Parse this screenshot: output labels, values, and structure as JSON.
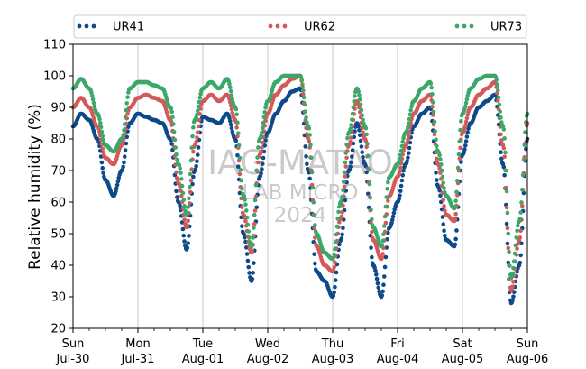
{
  "chart_data": {
    "type": "scatter",
    "title": "",
    "xlabel": "",
    "ylabel": "Relative humidity (%)",
    "ylim": [
      20,
      110
    ],
    "yticks": [
      20,
      30,
      40,
      50,
      60,
      70,
      80,
      90,
      100,
      110
    ],
    "xlim": [
      "2023-07-30T00:00",
      "2023-08-06T00:00"
    ],
    "xtick_labels": [
      {
        "day": "Sun",
        "date": "Jul-30"
      },
      {
        "day": "Mon",
        "date": "Jul-31"
      },
      {
        "day": "Tue",
        "date": "Aug-01"
      },
      {
        "day": "Wed",
        "date": "Aug-02"
      },
      {
        "day": "Thu",
        "date": "Aug-03"
      },
      {
        "day": "Fri",
        "date": "Aug-04"
      },
      {
        "day": "Sat",
        "date": "Aug-05"
      },
      {
        "day": "Sun",
        "date": "Aug-06"
      }
    ],
    "grid": "vertical at day ticks",
    "legend_position": "top",
    "watermark": [
      "IAG-MATAO",
      "LAB MICRO",
      "2024"
    ],
    "series": [
      {
        "name": "UR41",
        "color": "#0d4a8a",
        "x": [
          "2023-07-30T00:00",
          "2023-07-30T03:00",
          "2023-07-30T06:00",
          "2023-07-30T09:00",
          "2023-07-30T12:00",
          "2023-07-30T15:00",
          "2023-07-30T18:00",
          "2023-07-30T21:00",
          "2023-07-31T00:00",
          "2023-07-31T03:00",
          "2023-07-31T06:00",
          "2023-07-31T09:00",
          "2023-07-31T12:00",
          "2023-07-31T15:00",
          "2023-07-31T18:00",
          "2023-07-31T21:00",
          "2023-08-01T00:00",
          "2023-08-01T03:00",
          "2023-08-01T06:00",
          "2023-08-01T09:00",
          "2023-08-01T12:00",
          "2023-08-01T15:00",
          "2023-08-01T18:00",
          "2023-08-01T21:00",
          "2023-08-02T00:00",
          "2023-08-02T03:00",
          "2023-08-02T06:00",
          "2023-08-02T09:00",
          "2023-08-02T12:00",
          "2023-08-02T15:00",
          "2023-08-02T18:00",
          "2023-08-02T21:00",
          "2023-08-03T00:00",
          "2023-08-03T03:00",
          "2023-08-03T06:00",
          "2023-08-03T09:00",
          "2023-08-03T12:00",
          "2023-08-03T15:00",
          "2023-08-03T18:00",
          "2023-08-03T21:00",
          "2023-08-04T00:00",
          "2023-08-04T03:00",
          "2023-08-04T06:00",
          "2023-08-04T09:00",
          "2023-08-04T12:00",
          "2023-08-04T15:00",
          "2023-08-04T18:00",
          "2023-08-04T21:00",
          "2023-08-05T00:00",
          "2023-08-05T03:00",
          "2023-08-05T06:00",
          "2023-08-05T09:00",
          "2023-08-05T12:00",
          "2023-08-05T15:00",
          "2023-08-05T18:00",
          "2023-08-05T21:00",
          "2023-08-06T00:00"
        ],
        "y": [
          84,
          88,
          86,
          80,
          67,
          62,
          70,
          85,
          88,
          87,
          86,
          85,
          80,
          60,
          45,
          70,
          87,
          86,
          85,
          88,
          80,
          50,
          35,
          68,
          82,
          88,
          92,
          95,
          96,
          70,
          38,
          35,
          30,
          48,
          70,
          85,
          72,
          40,
          30,
          52,
          60,
          72,
          84,
          88,
          90,
          65,
          48,
          46,
          75,
          85,
          90,
          92,
          94,
          72,
          28,
          40,
          80
        ]
      },
      {
        "name": "UR62",
        "color": "#d45a5a",
        "x": [
          "2023-07-30T00:00",
          "2023-07-30T03:00",
          "2023-07-30T06:00",
          "2023-07-30T09:00",
          "2023-07-30T12:00",
          "2023-07-30T15:00",
          "2023-07-30T18:00",
          "2023-07-30T21:00",
          "2023-07-31T00:00",
          "2023-07-31T03:00",
          "2023-07-31T06:00",
          "2023-07-31T09:00",
          "2023-07-31T12:00",
          "2023-07-31T15:00",
          "2023-07-31T18:00",
          "2023-07-31T21:00",
          "2023-08-01T00:00",
          "2023-08-01T03:00",
          "2023-08-01T06:00",
          "2023-08-01T09:00",
          "2023-08-01T12:00",
          "2023-08-01T15:00",
          "2023-08-01T18:00",
          "2023-08-01T21:00",
          "2023-08-02T00:00",
          "2023-08-02T03:00",
          "2023-08-02T06:00",
          "2023-08-02T09:00",
          "2023-08-02T12:00",
          "2023-08-02T15:00",
          "2023-08-02T18:00",
          "2023-08-02T21:00",
          "2023-08-03T00:00",
          "2023-08-03T03:00",
          "2023-08-03T06:00",
          "2023-08-03T09:00",
          "2023-08-03T12:00",
          "2023-08-03T15:00",
          "2023-08-03T18:00",
          "2023-08-03T21:00",
          "2023-08-04T00:00",
          "2023-08-04T03:00",
          "2023-08-04T06:00",
          "2023-08-04T09:00",
          "2023-08-04T12:00",
          "2023-08-04T15:00",
          "2023-08-04T18:00",
          "2023-08-04T21:00",
          "2023-08-05T00:00",
          "2023-08-05T03:00",
          "2023-08-05T06:00",
          "2023-08-05T09:00",
          "2023-08-05T12:00",
          "2023-08-05T15:00",
          "2023-08-05T18:00",
          "2023-08-05T21:00",
          "2023-08-06T00:00"
        ],
        "y": [
          90,
          93,
          90,
          84,
          74,
          72,
          78,
          90,
          93,
          94,
          93,
          92,
          86,
          66,
          52,
          78,
          92,
          94,
          92,
          94,
          86,
          56,
          44,
          75,
          88,
          94,
          97,
          99,
          100,
          80,
          46,
          40,
          38,
          55,
          78,
          92,
          80,
          48,
          42,
          62,
          68,
          78,
          88,
          92,
          94,
          72,
          56,
          54,
          82,
          90,
          94,
          96,
          98,
          78,
          32,
          48,
          85
        ]
      },
      {
        "name": "UR73",
        "color": "#3aa868",
        "x": [
          "2023-07-30T00:00",
          "2023-07-30T03:00",
          "2023-07-30T06:00",
          "2023-07-30T09:00",
          "2023-07-30T12:00",
          "2023-07-30T15:00",
          "2023-07-30T18:00",
          "2023-07-30T21:00",
          "2023-07-31T00:00",
          "2023-07-31T03:00",
          "2023-07-31T06:00",
          "2023-07-31T09:00",
          "2023-07-31T12:00",
          "2023-07-31T15:00",
          "2023-07-31T18:00",
          "2023-07-31T21:00",
          "2023-08-01T00:00",
          "2023-08-01T03:00",
          "2023-08-01T06:00",
          "2023-08-01T09:00",
          "2023-08-01T12:00",
          "2023-08-01T15:00",
          "2023-08-01T18:00",
          "2023-08-01T21:00",
          "2023-08-02T00:00",
          "2023-08-02T03:00",
          "2023-08-02T06:00",
          "2023-08-02T09:00",
          "2023-08-02T12:00",
          "2023-08-02T15:00",
          "2023-08-02T18:00",
          "2023-08-02T21:00",
          "2023-08-03T00:00",
          "2023-08-03T03:00",
          "2023-08-03T06:00",
          "2023-08-03T09:00",
          "2023-08-03T12:00",
          "2023-08-03T15:00",
          "2023-08-03T18:00",
          "2023-08-03T21:00",
          "2023-08-04T00:00",
          "2023-08-04T03:00",
          "2023-08-04T06:00",
          "2023-08-04T09:00",
          "2023-08-04T12:00",
          "2023-08-04T15:00",
          "2023-08-04T18:00",
          "2023-08-04T21:00",
          "2023-08-05T00:00",
          "2023-08-05T03:00",
          "2023-08-05T06:00",
          "2023-08-05T09:00",
          "2023-08-05T12:00",
          "2023-08-05T15:00",
          "2023-08-05T18:00",
          "2023-08-05T21:00",
          "2023-08-06T00:00"
        ],
        "y": [
          96,
          99,
          96,
          88,
          78,
          76,
          80,
          96,
          98,
          98,
          97,
          96,
          90,
          72,
          56,
          86,
          96,
          98,
          96,
          99,
          90,
          62,
          46,
          80,
          92,
          98,
          100,
          100,
          100,
          84,
          50,
          44,
          42,
          60,
          82,
          96,
          84,
          52,
          46,
          68,
          72,
          82,
          92,
          96,
          98,
          76,
          62,
          58,
          88,
          96,
          99,
          100,
          100,
          84,
          36,
          54,
          88
        ]
      }
    ]
  }
}
